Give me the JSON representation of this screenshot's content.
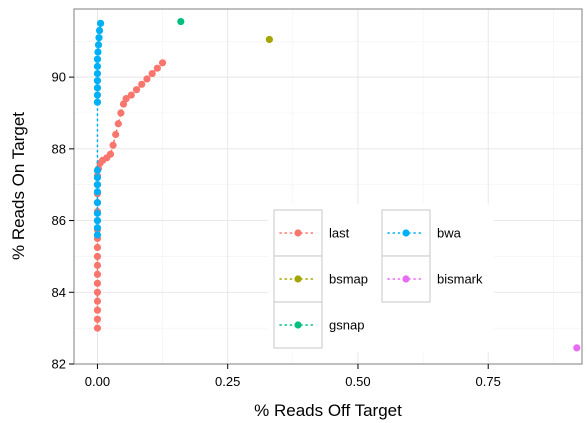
{
  "chart_data": {
    "type": "scatter",
    "title": "",
    "xlabel": "% Reads Off Target",
    "ylabel": "% Reads On Target",
    "xlim": [
      -0.045,
      0.93
    ],
    "ylim": [
      82.0,
      91.9
    ],
    "xticks": [
      0.0,
      0.25,
      0.5,
      0.75
    ],
    "xtick_labels": [
      "0.00",
      "0.25",
      "0.50",
      "0.75"
    ],
    "yticks": [
      82,
      84,
      86,
      88,
      90
    ],
    "ytick_labels": [
      "82",
      "84",
      "86",
      "88",
      "90"
    ],
    "grid": true,
    "legend": {
      "placement": "inside-bottom-center",
      "columns": 2,
      "entries": [
        {
          "name": "last",
          "color": "#F8766D"
        },
        {
          "name": "bwa",
          "color": "#00B0F6"
        },
        {
          "name": "bsmap",
          "color": "#A3A500"
        },
        {
          "name": "bismark",
          "color": "#E76BF3"
        },
        {
          "name": "gsnap",
          "color": "#00BF7D"
        }
      ]
    },
    "series": [
      {
        "name": "last",
        "color": "#F8766D",
        "connector": "dotted",
        "points": [
          [
            0.0,
            83.0
          ],
          [
            0.0,
            83.25
          ],
          [
            0.0,
            83.5
          ],
          [
            0.0,
            83.75
          ],
          [
            0.0,
            84.0
          ],
          [
            0.0,
            84.25
          ],
          [
            0.0,
            84.5
          ],
          [
            0.0,
            84.75
          ],
          [
            0.0,
            85.0
          ],
          [
            0.0,
            85.25
          ],
          [
            0.0,
            85.5
          ],
          [
            0.0,
            85.75
          ],
          [
            0.0,
            86.0
          ],
          [
            0.0,
            86.25
          ],
          [
            0.0,
            86.5
          ],
          [
            0.0,
            86.75
          ],
          [
            0.0,
            87.0
          ],
          [
            0.0,
            87.25
          ],
          [
            0.002,
            87.45
          ],
          [
            0.005,
            87.6
          ],
          [
            0.01,
            87.68
          ],
          [
            0.018,
            87.75
          ],
          [
            0.025,
            87.85
          ],
          [
            0.03,
            88.1
          ],
          [
            0.035,
            88.4
          ],
          [
            0.04,
            88.7
          ],
          [
            0.045,
            89.0
          ],
          [
            0.05,
            89.25
          ],
          [
            0.055,
            89.4
          ],
          [
            0.065,
            89.5
          ],
          [
            0.075,
            89.65
          ],
          [
            0.085,
            89.8
          ],
          [
            0.095,
            89.95
          ],
          [
            0.105,
            90.1
          ],
          [
            0.115,
            90.25
          ],
          [
            0.125,
            90.4
          ]
        ]
      },
      {
        "name": "bwa",
        "color": "#00B0F6",
        "connector": "dotted",
        "points": [
          [
            0.0,
            85.6
          ],
          [
            0.0,
            85.8
          ],
          [
            0.0,
            86.0
          ],
          [
            0.0,
            86.2
          ],
          [
            0.0,
            86.5
          ],
          [
            0.0,
            86.8
          ],
          [
            0.0,
            87.0
          ],
          [
            0.0,
            87.2
          ],
          [
            0.0,
            87.4
          ],
          [
            0.0,
            89.3
          ],
          [
            0.0,
            89.5
          ],
          [
            0.0,
            89.7
          ],
          [
            0.0,
            89.9
          ],
          [
            0.0,
            90.1
          ],
          [
            0.0,
            90.3
          ],
          [
            0.0,
            90.5
          ],
          [
            0.001,
            90.7
          ],
          [
            0.002,
            90.9
          ],
          [
            0.003,
            91.1
          ],
          [
            0.004,
            91.3
          ],
          [
            0.006,
            91.5
          ]
        ]
      },
      {
        "name": "bsmap",
        "color": "#A3A500",
        "connector": "dotted",
        "points": [
          [
            0.33,
            91.05
          ]
        ]
      },
      {
        "name": "gsnap",
        "color": "#00BF7D",
        "connector": "dotted",
        "points": [
          [
            0.16,
            91.55
          ]
        ]
      },
      {
        "name": "bismark",
        "color": "#E76BF3",
        "connector": "dotted",
        "points": [
          [
            0.92,
            82.45
          ]
        ]
      }
    ]
  }
}
